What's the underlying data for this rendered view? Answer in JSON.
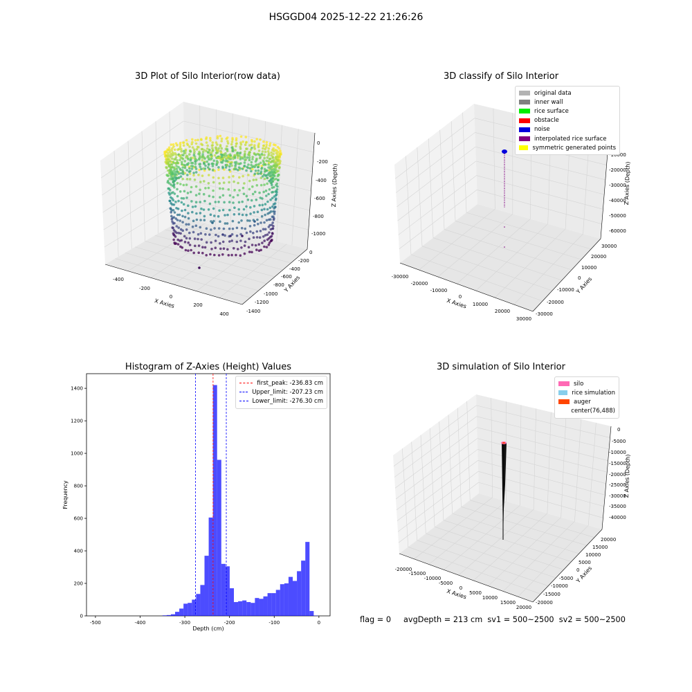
{
  "suptitle": "HSGGD04 2025-12-22 21:26:26",
  "panels": {
    "tl": {
      "title": "3D Plot of Silo Interior(row data)",
      "xlabel": "X Axies",
      "ylabel": "Y Axies",
      "zlabel": "Z Axies (Depth)",
      "xticks": [
        "-400",
        "-200",
        "0",
        "200",
        "400"
      ],
      "yticks": [
        "0",
        "-200",
        "-400",
        "-600",
        "-800",
        "-1000",
        "-1200",
        "-1400"
      ],
      "zticks": [
        "0",
        "-200",
        "-400",
        "-600",
        "-800",
        "-1000"
      ]
    },
    "tr": {
      "title": "3D classify of Silo Interior",
      "xlabel": "X Axies",
      "ylabel": "Y Axies",
      "zlabel": "Z Axies (Depth)",
      "xticks": [
        "-30000",
        "-20000",
        "-10000",
        "0",
        "10000",
        "20000",
        "30000"
      ],
      "yticks": [
        "30000",
        "20000",
        "10000",
        "0",
        "-10000",
        "-20000",
        "-30000"
      ],
      "zticks": [
        "0",
        "-10000",
        "-20000",
        "-30000",
        "-40000",
        "-50000",
        "-60000"
      ],
      "legend": [
        {
          "label": "original data",
          "color": "#b3b3b3"
        },
        {
          "label": "inner wall",
          "color": "#808080"
        },
        {
          "label": "rice surface",
          "color": "#00ee00"
        },
        {
          "label": "obstacle",
          "color": "#ff0000"
        },
        {
          "label": "noise",
          "color": "#0000dd"
        },
        {
          "label": "interpolated rice surface",
          "color": "#800080"
        },
        {
          "label": "symmetric generated points",
          "color": "#ffff00"
        }
      ]
    },
    "bl": {
      "title": "Histogram of Z-Axies (Height) Values"
    },
    "br": {
      "title": "3D simulation of Silo Interior",
      "xlabel": "X Axies",
      "ylabel": "Y Axies",
      "zlabel": "Z Axies (Depth)",
      "xticks": [
        "-20000",
        "-15000",
        "-10000",
        "-5000",
        "0",
        "5000",
        "10000",
        "15000",
        "20000"
      ],
      "yticks": [
        "20000",
        "15000",
        "10000",
        "5000",
        "0",
        "-5000",
        "-10000",
        "-15000",
        "-20000"
      ],
      "zticks": [
        "0",
        "-5000",
        "-10000",
        "-15000",
        "-20000",
        "-25000",
        "-30000",
        "-35000",
        "-40000"
      ],
      "legend": [
        {
          "label": "silo",
          "color": "#ff69b4"
        },
        {
          "label": "rice simulation",
          "color": "#87ceeb"
        },
        {
          "label": "auger",
          "color": "#ff4500"
        },
        {
          "label": "center(76,488)",
          "color": ""
        }
      ]
    }
  },
  "footer": "flag = 0     avgDepth = 213 cm  sv1 = 500~2500  sv2 = 500~2500",
  "chart_data": {
    "type": "bar",
    "title": "Histogram of Z-Axies (Height) Values",
    "xlabel": "Depth (cm)",
    "ylabel": "Frequency",
    "xlim": [
      -520,
      25
    ],
    "ylim": [
      0,
      1490
    ],
    "xticks": [
      -500,
      -400,
      -300,
      -200,
      -100,
      0
    ],
    "yticks": [
      0,
      200,
      400,
      600,
      800,
      1000,
      1200,
      1400
    ],
    "bar_color": "#0000ff",
    "bin_edges": [
      -350.0,
      -340.6,
      -331.2,
      -321.8,
      -312.4,
      -303.0,
      -293.6,
      -284.2,
      -274.8,
      -265.4,
      -256.0,
      -246.6,
      -237.2,
      -227.8,
      -218.4,
      -209.0,
      -199.6,
      -190.2,
      -180.8,
      -171.4,
      -162.0,
      -152.6,
      -143.2,
      -133.8,
      -124.4,
      -115.0,
      -105.6,
      -96.2,
      -86.8,
      -77.4,
      -68.0,
      -58.6,
      -49.2,
      -39.8,
      -30.4,
      -21.0,
      -11.6,
      -2.2,
      7.2
    ],
    "values": [
      3,
      5,
      10,
      25,
      45,
      75,
      80,
      100,
      135,
      190,
      370,
      605,
      1420,
      960,
      320,
      305,
      170,
      85,
      90,
      95,
      85,
      80,
      110,
      105,
      120,
      140,
      140,
      160,
      195,
      200,
      240,
      215,
      275,
      340,
      455,
      30,
      2,
      0
    ],
    "lines": [
      {
        "label": "first_peak: -236.83 cm",
        "x": -236.83,
        "color": "#ff0000"
      },
      {
        "label": "Upper_limit: -207.23 cm",
        "x": -207.23,
        "color": "#0000ff"
      },
      {
        "label": "Lower_limit: -276.30 cm",
        "x": -276.3,
        "color": "#0000ff"
      }
    ]
  }
}
